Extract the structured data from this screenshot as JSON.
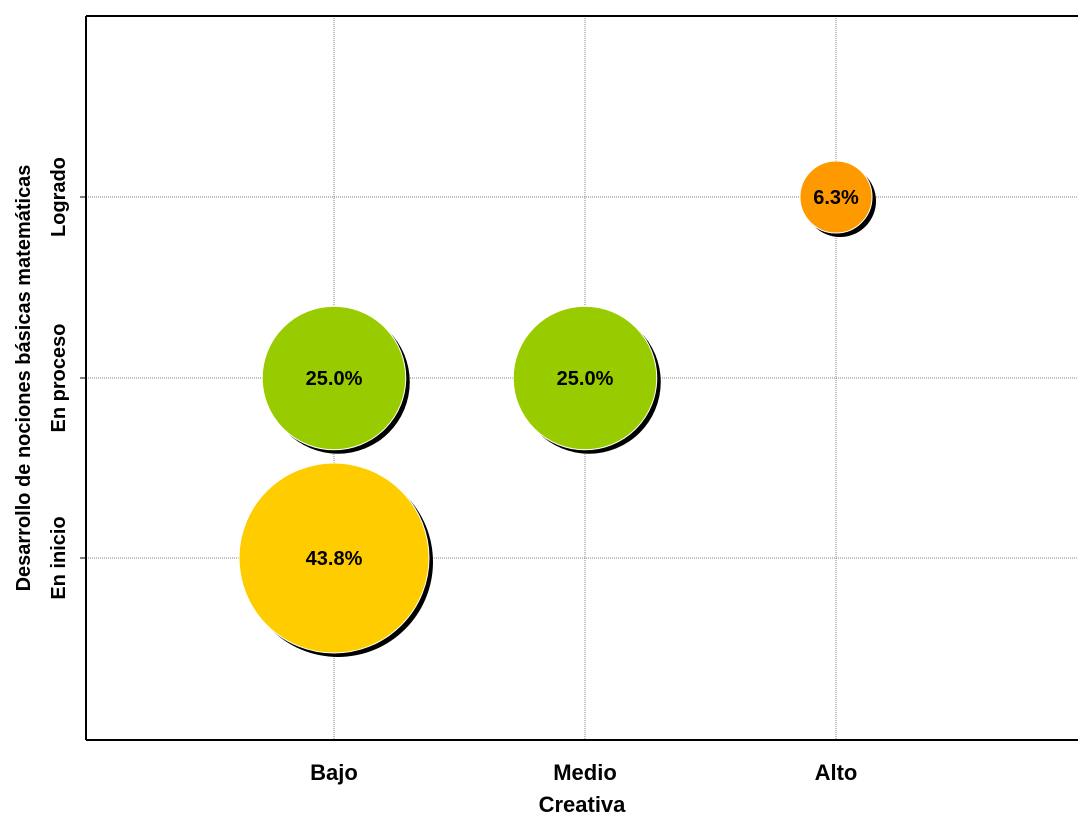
{
  "chart_data": {
    "type": "scatter",
    "subtype": "bubble",
    "title": "",
    "xlabel": "Creativa",
    "ylabel": "Desarrollo de nociones básicas matemáticas",
    "x_categories": [
      "Bajo",
      "Medio",
      "Alto"
    ],
    "y_categories": [
      "En inicio",
      "En proceso",
      "Logrado"
    ],
    "grid": true,
    "legend": "none",
    "points": [
      {
        "x": "Bajo",
        "y": "En inicio",
        "value": 43.8,
        "label": "43.8%",
        "color": "#FFCC00"
      },
      {
        "x": "Bajo",
        "y": "En proceso",
        "value": 25.0,
        "label": "25.0%",
        "color": "#99CC00"
      },
      {
        "x": "Medio",
        "y": "En proceso",
        "value": 25.0,
        "label": "25.0%",
        "color": "#99CC00"
      },
      {
        "x": "Alto",
        "y": "Logrado",
        "value": 6.3,
        "label": "6.3%",
        "color": "#FF9900"
      }
    ]
  }
}
